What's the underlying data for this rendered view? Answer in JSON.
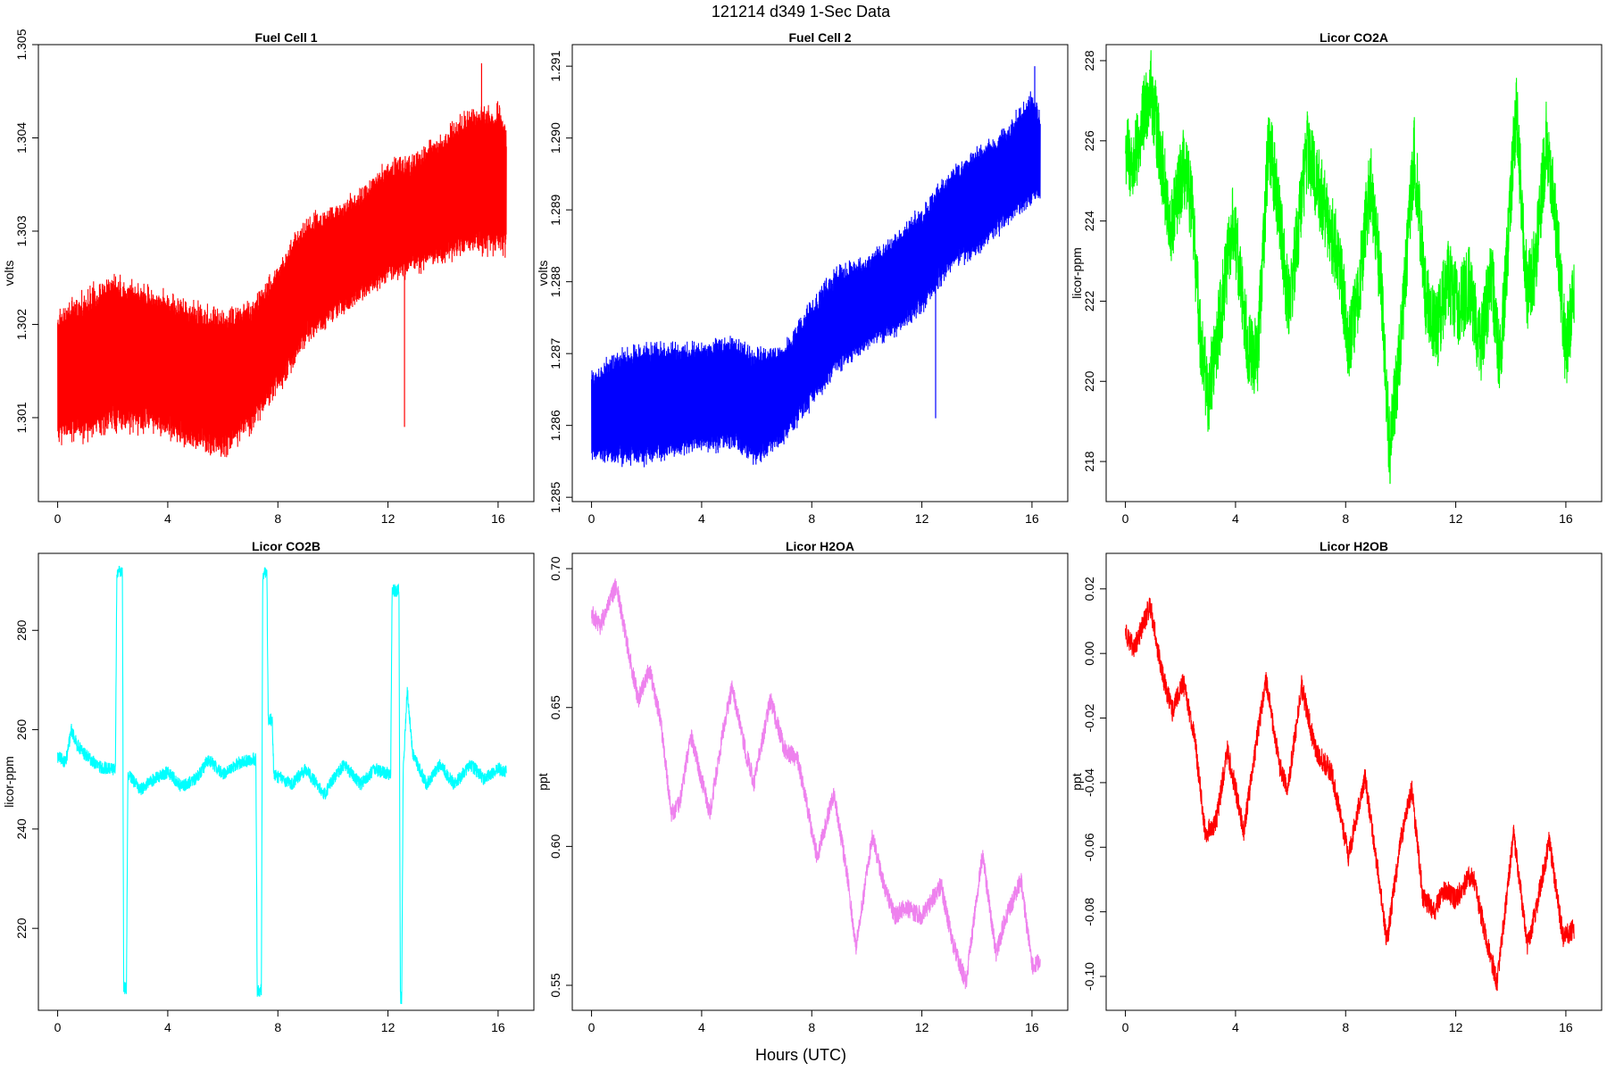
{
  "figure": {
    "title": "121214   d349   1-Sec Data",
    "xlabel": "Hours (UTC)"
  },
  "chart_data": [
    {
      "type": "line",
      "title": "Fuel Cell 1",
      "ylabel": "volts",
      "color": "#ff0000",
      "xlim": [
        -0.7,
        17.3
      ],
      "ylim": [
        1.3001,
        1.305
      ],
      "xticks": [
        0,
        4,
        8,
        12,
        16
      ],
      "yticks": [
        1.301,
        1.302,
        1.303,
        1.304,
        1.305
      ],
      "ytick_labels": [
        "1.301",
        "1.302",
        "1.303",
        "1.304",
        "1.305"
      ],
      "band_min": [
        [
          0,
          1.3007
        ],
        [
          1,
          1.3007
        ],
        [
          2,
          1.3008
        ],
        [
          3,
          1.3008
        ],
        [
          4,
          1.3007
        ],
        [
          5,
          1.3006
        ],
        [
          6,
          1.3005
        ],
        [
          7,
          1.3008
        ],
        [
          8,
          1.3012
        ],
        [
          9,
          1.3017
        ],
        [
          10,
          1.302
        ],
        [
          11,
          1.3022
        ],
        [
          12,
          1.3024
        ],
        [
          13,
          1.3025
        ],
        [
          14,
          1.3026
        ],
        [
          15,
          1.3027
        ],
        [
          16,
          1.3027
        ],
        [
          16.3,
          1.3027
        ]
      ],
      "band_max": [
        [
          0,
          1.3022
        ],
        [
          1,
          1.3024
        ],
        [
          2,
          1.3026
        ],
        [
          3,
          1.3025
        ],
        [
          4,
          1.3024
        ],
        [
          5,
          1.3023
        ],
        [
          6,
          1.3022
        ],
        [
          7,
          1.3023
        ],
        [
          8,
          1.3027
        ],
        [
          9,
          1.3032
        ],
        [
          10,
          1.3033
        ],
        [
          11,
          1.3035
        ],
        [
          12,
          1.3038
        ],
        [
          13,
          1.3039
        ],
        [
          14,
          1.3041
        ],
        [
          15,
          1.3044
        ],
        [
          16,
          1.3044
        ],
        [
          16.3,
          1.3042
        ]
      ],
      "spikes": [
        [
          12.6,
          1.3009
        ],
        [
          15.4,
          1.3048
        ]
      ]
    },
    {
      "type": "line",
      "title": "Fuel Cell 2",
      "ylabel": "volts",
      "color": "#0000ff",
      "xlim": [
        -0.7,
        17.3
      ],
      "ylim": [
        1.28494,
        1.2913
      ],
      "xticks": [
        0,
        4,
        8,
        12,
        16
      ],
      "yticks": [
        1.285,
        1.286,
        1.287,
        1.288,
        1.289,
        1.29,
        1.291
      ],
      "ytick_labels": [
        "1.285",
        "1.286",
        "1.287",
        "1.288",
        "1.289",
        "1.290",
        "1.291"
      ],
      "band_min": [
        [
          0,
          1.2855
        ],
        [
          1,
          1.2854
        ],
        [
          2,
          1.2854
        ],
        [
          3,
          1.2855
        ],
        [
          4,
          1.2856
        ],
        [
          5,
          1.2856
        ],
        [
          6,
          1.2854
        ],
        [
          7,
          1.2857
        ],
        [
          8,
          1.2862
        ],
        [
          9,
          1.2867
        ],
        [
          10,
          1.287
        ],
        [
          11,
          1.2872
        ],
        [
          12,
          1.2875
        ],
        [
          13,
          1.2881
        ],
        [
          14,
          1.2883
        ],
        [
          15,
          1.2887
        ],
        [
          16,
          1.289
        ],
        [
          16.3,
          1.2891
        ]
      ],
      "band_max": [
        [
          0,
          1.2868
        ],
        [
          1,
          1.2871
        ],
        [
          2,
          1.2872
        ],
        [
          3,
          1.2872
        ],
        [
          4,
          1.2872
        ],
        [
          5,
          1.2873
        ],
        [
          6,
          1.2871
        ],
        [
          7,
          1.2872
        ],
        [
          8,
          1.2878
        ],
        [
          9,
          1.2883
        ],
        [
          10,
          1.2884
        ],
        [
          11,
          1.2887
        ],
        [
          12,
          1.2891
        ],
        [
          13,
          1.2896
        ],
        [
          14,
          1.2899
        ],
        [
          15,
          1.2902
        ],
        [
          16,
          1.2907
        ],
        [
          16.3,
          1.2904
        ]
      ],
      "spikes": [
        [
          12.5,
          1.2861
        ],
        [
          16.1,
          1.291
        ]
      ]
    },
    {
      "type": "line",
      "title": "Licor CO2A",
      "ylabel": "licor-ppm",
      "color": "#00ff00",
      "xlim": [
        -0.7,
        17.3
      ],
      "ylim": [
        217.0,
        228.4
      ],
      "xticks": [
        0,
        4,
        8,
        12,
        16
      ],
      "yticks": [
        218,
        220,
        222,
        224,
        226,
        228
      ],
      "ytick_labels": [
        "218",
        "220",
        "222",
        "224",
        "226",
        "228"
      ],
      "center": [
        [
          0,
          225.8
        ],
        [
          0.3,
          225.3
        ],
        [
          0.9,
          227.4
        ],
        [
          1.4,
          225.1
        ],
        [
          1.6,
          223.6
        ],
        [
          2.1,
          225.3
        ],
        [
          2.4,
          224.5
        ],
        [
          2.7,
          221.3
        ],
        [
          3.0,
          219.6
        ],
        [
          3.4,
          221.4
        ],
        [
          3.9,
          223.9
        ],
        [
          4.1,
          223.0
        ],
        [
          4.5,
          220.7
        ],
        [
          4.8,
          220.6
        ],
        [
          5.2,
          226.0
        ],
        [
          5.6,
          224.2
        ],
        [
          5.9,
          222.0
        ],
        [
          6.1,
          222.7
        ],
        [
          6.6,
          225.8
        ],
        [
          7.2,
          224.4
        ],
        [
          7.8,
          222.9
        ],
        [
          8.1,
          221.0
        ],
        [
          8.4,
          221.8
        ],
        [
          8.9,
          225.0
        ],
        [
          9.3,
          222.4
        ],
        [
          9.6,
          218.2
        ],
        [
          10.0,
          221.1
        ],
        [
          10.5,
          225.7
        ],
        [
          10.9,
          222.1
        ],
        [
          11.3,
          221.2
        ],
        [
          11.7,
          222.6
        ],
        [
          12.1,
          221.8
        ],
        [
          12.5,
          222.4
        ],
        [
          12.9,
          220.8
        ],
        [
          13.3,
          222.7
        ],
        [
          13.6,
          220.3
        ],
        [
          14.0,
          224.6
        ],
        [
          14.2,
          226.8
        ],
        [
          14.6,
          222.1
        ],
        [
          14.9,
          223.0
        ],
        [
          15.3,
          226.1
        ],
        [
          15.7,
          223.5
        ],
        [
          16.0,
          220.7
        ],
        [
          16.3,
          222.3
        ]
      ],
      "half_width": 1.0
    },
    {
      "type": "line",
      "title": "Licor CO2B",
      "ylabel": "licor-ppm",
      "color": "#00ffff",
      "xlim": [
        -0.7,
        17.3
      ],
      "ylim": [
        203.5,
        295.5
      ],
      "xticks": [
        0,
        4,
        8,
        12,
        16
      ],
      "yticks": [
        220,
        240,
        260,
        280
      ],
      "ytick_labels": [
        "220",
        "240",
        "260",
        "280"
      ],
      "points": [
        [
          0,
          254.5
        ],
        [
          0.3,
          253.5
        ],
        [
          0.5,
          260
        ],
        [
          0.7,
          257
        ],
        [
          1.0,
          255
        ],
        [
          1.5,
          252.5
        ],
        [
          2.1,
          252
        ],
        [
          2.15,
          292
        ],
        [
          2.35,
          292
        ],
        [
          2.4,
          208
        ],
        [
          2.5,
          208
        ],
        [
          2.55,
          251
        ],
        [
          3.0,
          248
        ],
        [
          3.5,
          250
        ],
        [
          4.0,
          251.5
        ],
        [
          4.5,
          248.5
        ],
        [
          5.0,
          250
        ],
        [
          5.5,
          254
        ],
        [
          6.0,
          251
        ],
        [
          6.5,
          253
        ],
        [
          7.0,
          254
        ],
        [
          7.2,
          254
        ],
        [
          7.25,
          207.5
        ],
        [
          7.4,
          207.5
        ],
        [
          7.45,
          291.5
        ],
        [
          7.6,
          291.5
        ],
        [
          7.65,
          262
        ],
        [
          7.8,
          262
        ],
        [
          7.85,
          251
        ],
        [
          8.5,
          249
        ],
        [
          9.0,
          252
        ],
        [
          9.7,
          247
        ],
        [
          10.0,
          250
        ],
        [
          10.4,
          253
        ],
        [
          11.0,
          249
        ],
        [
          11.5,
          252
        ],
        [
          12.1,
          251
        ],
        [
          12.15,
          288
        ],
        [
          12.4,
          288
        ],
        [
          12.45,
          206
        ],
        [
          12.5,
          206
        ],
        [
          12.55,
          251
        ],
        [
          12.7,
          268
        ],
        [
          12.9,
          255
        ],
        [
          13.4,
          249
        ],
        [
          13.9,
          253
        ],
        [
          14.4,
          249
        ],
        [
          15.0,
          253
        ],
        [
          15.5,
          250
        ],
        [
          16.0,
          252
        ],
        [
          16.3,
          251.5
        ]
      ],
      "half_width": 1.3
    },
    {
      "type": "line",
      "title": "Licor H2OA",
      "ylabel": "ppt",
      "color": "#ee82ee",
      "xlim": [
        -0.7,
        17.3
      ],
      "ylim": [
        0.541,
        0.7055
      ],
      "xticks": [
        0,
        4,
        8,
        12,
        16
      ],
      "yticks": [
        0.55,
        0.6,
        0.65,
        0.7
      ],
      "ytick_labels": [
        "0.55",
        "0.60",
        "0.65",
        "0.70"
      ],
      "center": [
        [
          0,
          0.684
        ],
        [
          0.3,
          0.679
        ],
        [
          0.9,
          0.694
        ],
        [
          1.4,
          0.667
        ],
        [
          1.7,
          0.653
        ],
        [
          2.1,
          0.664
        ],
        [
          2.5,
          0.646
        ],
        [
          2.9,
          0.612
        ],
        [
          3.2,
          0.615
        ],
        [
          3.6,
          0.64
        ],
        [
          4.0,
          0.624
        ],
        [
          4.3,
          0.612
        ],
        [
          4.8,
          0.643
        ],
        [
          5.1,
          0.657
        ],
        [
          5.6,
          0.634
        ],
        [
          5.9,
          0.623
        ],
        [
          6.5,
          0.653
        ],
        [
          7.0,
          0.635
        ],
        [
          7.5,
          0.631
        ],
        [
          8.2,
          0.596
        ],
        [
          8.8,
          0.619
        ],
        [
          9.3,
          0.589
        ],
        [
          9.6,
          0.563
        ],
        [
          10.2,
          0.604
        ],
        [
          10.6,
          0.587
        ],
        [
          11.0,
          0.575
        ],
        [
          11.4,
          0.578
        ],
        [
          12.0,
          0.575
        ],
        [
          12.7,
          0.586
        ],
        [
          13.1,
          0.566
        ],
        [
          13.6,
          0.551
        ],
        [
          14.2,
          0.597
        ],
        [
          14.7,
          0.561
        ],
        [
          15.0,
          0.573
        ],
        [
          15.6,
          0.588
        ],
        [
          16.0,
          0.557
        ],
        [
          16.3,
          0.558
        ]
      ],
      "half_width": 0.0035
    },
    {
      "type": "line",
      "title": "Licor H2OB",
      "ylabel": "ppt",
      "color": "#ff0000",
      "xlim": [
        -0.7,
        17.3
      ],
      "ylim": [
        -0.1105,
        0.031
      ],
      "xticks": [
        0,
        4,
        8,
        12,
        16
      ],
      "yticks": [
        -0.1,
        -0.08,
        -0.06,
        -0.04,
        -0.02,
        0.0,
        0.02
      ],
      "ytick_labels": [
        "-0.10",
        "-0.08",
        "-0.06",
        "-0.04",
        "-0.02",
        "0.00",
        "0.02"
      ],
      "center": [
        [
          0,
          0.007
        ],
        [
          0.3,
          0.001
        ],
        [
          0.9,
          0.015
        ],
        [
          1.3,
          -0.005
        ],
        [
          1.7,
          -0.018
        ],
        [
          2.1,
          -0.009
        ],
        [
          2.5,
          -0.025
        ],
        [
          2.9,
          -0.056
        ],
        [
          3.3,
          -0.052
        ],
        [
          3.7,
          -0.03
        ],
        [
          4.0,
          -0.042
        ],
        [
          4.3,
          -0.055
        ],
        [
          4.8,
          -0.025
        ],
        [
          5.1,
          -0.008
        ],
        [
          5.6,
          -0.035
        ],
        [
          5.9,
          -0.042
        ],
        [
          6.4,
          -0.01
        ],
        [
          6.9,
          -0.03
        ],
        [
          7.5,
          -0.037
        ],
        [
          8.1,
          -0.063
        ],
        [
          8.7,
          -0.038
        ],
        [
          9.1,
          -0.063
        ],
        [
          9.5,
          -0.089
        ],
        [
          10.0,
          -0.058
        ],
        [
          10.4,
          -0.042
        ],
        [
          10.8,
          -0.075
        ],
        [
          11.2,
          -0.08
        ],
        [
          11.6,
          -0.073
        ],
        [
          12.0,
          -0.076
        ],
        [
          12.6,
          -0.068
        ],
        [
          13.1,
          -0.088
        ],
        [
          13.5,
          -0.102
        ],
        [
          14.1,
          -0.056
        ],
        [
          14.6,
          -0.09
        ],
        [
          14.9,
          -0.08
        ],
        [
          15.4,
          -0.058
        ],
        [
          15.9,
          -0.088
        ],
        [
          16.3,
          -0.085
        ]
      ],
      "half_width": 0.0035
    }
  ]
}
